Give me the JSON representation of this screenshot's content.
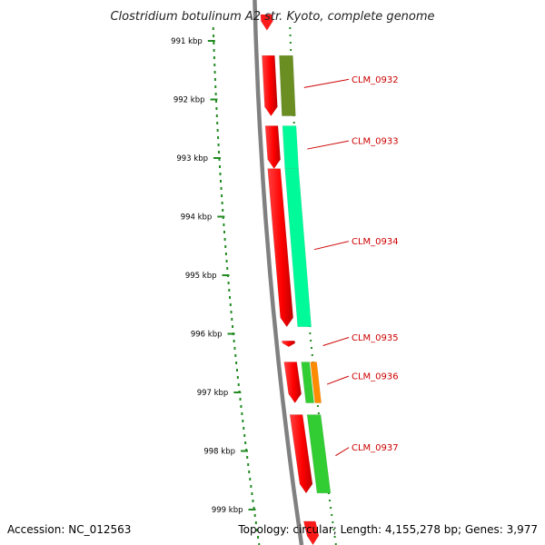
{
  "title": "Clostridium botulinum A2 str. Kyoto, complete genome",
  "footer": {
    "accession": "Accession: NC_012563",
    "topology": "Topology: circular; Length: 4,155,278 bp; Genes: 3,977"
  },
  "scale": {
    "ticks": [
      {
        "label": "991 kbp",
        "kbp": 991
      },
      {
        "label": "992 kbp",
        "kbp": 992
      },
      {
        "label": "993 kbp",
        "kbp": 993
      },
      {
        "label": "994 kbp",
        "kbp": 994
      },
      {
        "label": "995 kbp",
        "kbp": 995
      },
      {
        "label": "996 kbp",
        "kbp": 996
      },
      {
        "label": "997 kbp",
        "kbp": 997
      },
      {
        "label": "998 kbp",
        "kbp": 998
      },
      {
        "label": "999 kbp",
        "kbp": 999
      }
    ]
  },
  "genes": [
    {
      "name": "CLM_0932",
      "start_kbp": 991.25,
      "end_kbp": 992.28,
      "cds_color": "#6b8e23"
    },
    {
      "name": "CLM_0933",
      "start_kbp": 992.45,
      "end_kbp": 993.18,
      "cds_color": "#00fa9a"
    },
    {
      "name": "CLM_0934",
      "start_kbp": 993.18,
      "end_kbp": 995.88,
      "cds_color": "#00fa9a"
    },
    {
      "name": "CLM_0935",
      "start_kbp": 996.12,
      "end_kbp": 996.22,
      "cds_color": null
    },
    {
      "name": "CLM_0936",
      "start_kbp": 996.48,
      "end_kbp": 997.18,
      "cds_color": "#32cd32",
      "extra_color": "#ff8c00"
    },
    {
      "name": "CLM_0937",
      "start_kbp": 997.38,
      "end_kbp": 998.72,
      "cds_color": "#32cd32"
    }
  ],
  "partial_features": [
    {
      "start_kbp": 990.55,
      "end_kbp": 990.82
    },
    {
      "start_kbp": 999.2,
      "end_kbp": 999.6
    }
  ],
  "colors": {
    "backbone": "#808080",
    "gene": "#ff0000",
    "gc_skew": "#228b22",
    "label": "#cc0000"
  }
}
